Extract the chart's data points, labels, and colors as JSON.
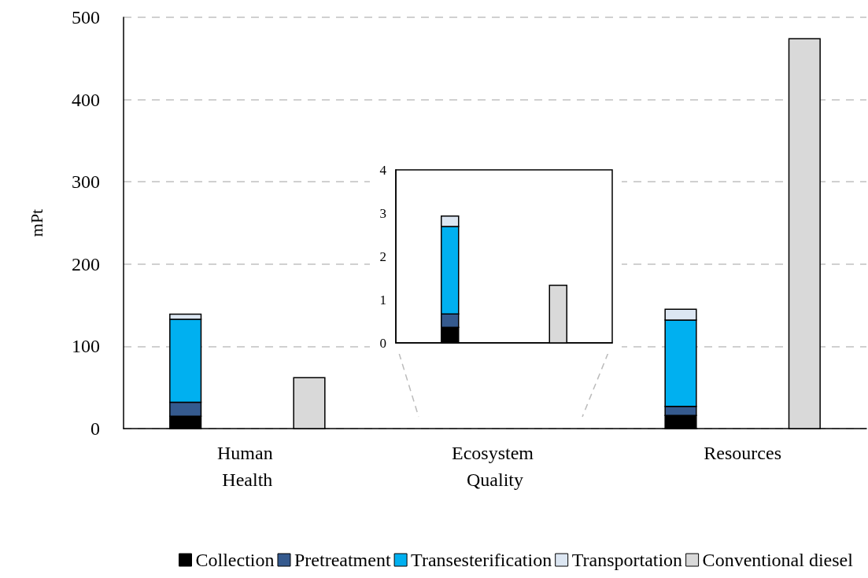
{
  "chart_data": [
    {
      "type": "bar",
      "categories": [
        "Human Health",
        "Ecosystem Quality",
        "Resources"
      ],
      "ylabel": "mPt",
      "ylim": [
        0,
        500
      ],
      "yticks": [
        0,
        100,
        200,
        300,
        400,
        500
      ],
      "grid": "y",
      "legend": "bottom",
      "series": [
        {
          "name": "Collection",
          "color": "#000000",
          "values": [
            15,
            null,
            16
          ],
          "base": [
            0,
            null,
            0
          ]
        },
        {
          "name": "Pretreatment",
          "color": "#355a8e",
          "values": [
            17,
            null,
            11
          ],
          "base": [
            15,
            null,
            16
          ]
        },
        {
          "name": "Transesterification",
          "color": "#00b0f0",
          "values": [
            101,
            null,
            105
          ],
          "base": [
            32,
            null,
            27
          ]
        },
        {
          "name": "Transportation",
          "color": "#dce6f2",
          "values": [
            6,
            null,
            13
          ],
          "base": [
            133,
            null,
            132
          ]
        },
        {
          "name": "Conventional diesel",
          "color": "#d9d9d9",
          "values": [
            62,
            null,
            474
          ]
        }
      ]
    },
    {
      "type": "bar",
      "categories": [
        null
      ],
      "ylim": [
        0,
        4
      ],
      "yticks": [
        0,
        1,
        2,
        3,
        4
      ],
      "grid": false,
      "legend": false,
      "series": [
        {
          "color": "#000000",
          "values": [
            0.36
          ],
          "base": [
            0
          ]
        },
        {
          "color": "#355a8e",
          "values": [
            0.31
          ],
          "base": [
            0.36
          ]
        },
        {
          "color": "#00b0f0",
          "values": [
            2.02
          ],
          "base": [
            0.67
          ]
        },
        {
          "color": "#dce6f2",
          "values": [
            0.24
          ],
          "base": [
            2.69
          ]
        },
        {
          "color": "#d9d9d9",
          "values": [
            1.33
          ]
        }
      ]
    }
  ]
}
